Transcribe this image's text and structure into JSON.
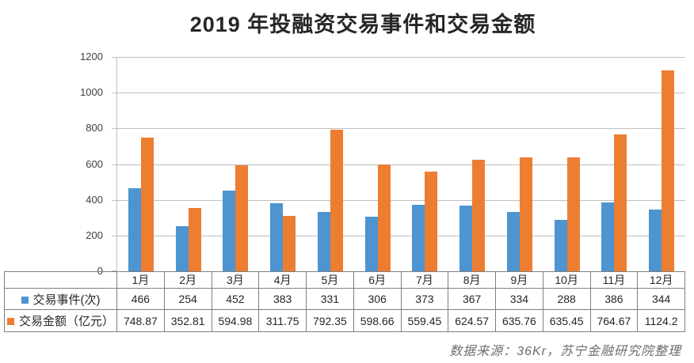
{
  "page": {
    "source_note": "数据来源：36Kr，苏宁金融研究院整理"
  },
  "colors": {
    "events_series": "#4D94D0",
    "amount_series": "#ED7D31",
    "gridline": "#BFBFBF",
    "table_border": "#808080",
    "title_text": "#262626",
    "tick_text": "#404040",
    "cell_text": "#262626",
    "source_text": "#6E6E6E",
    "background": "#FFFFFF"
  },
  "chart_data": {
    "type": "bar",
    "title": "2019 年投融资交易事件和交易金额",
    "categories": [
      "1月",
      "2月",
      "3月",
      "4月",
      "5月",
      "6月",
      "7月",
      "8月",
      "9月",
      "10月",
      "11月",
      "12月"
    ],
    "series": [
      {
        "name": "交易事件(次)",
        "color": "#4D94D0",
        "values": [
          466,
          254,
          452,
          383,
          331,
          306,
          373,
          367,
          334,
          288,
          386,
          344
        ]
      },
      {
        "name": "交易金额（亿元）",
        "color": "#ED7D31",
        "values": [
          748.87,
          352.81,
          594.98,
          311.75,
          792.35,
          598.66,
          559.45,
          624.57,
          635.76,
          635.45,
          764.67,
          1124.2
        ]
      }
    ],
    "xlabel": "",
    "ylabel": "",
    "ylim": [
      0,
      1200
    ],
    "yticks": [
      0,
      200,
      400,
      600,
      800,
      1000,
      1200
    ],
    "grid": true,
    "legend_position": "data-table-left",
    "data_table_shown": true
  }
}
